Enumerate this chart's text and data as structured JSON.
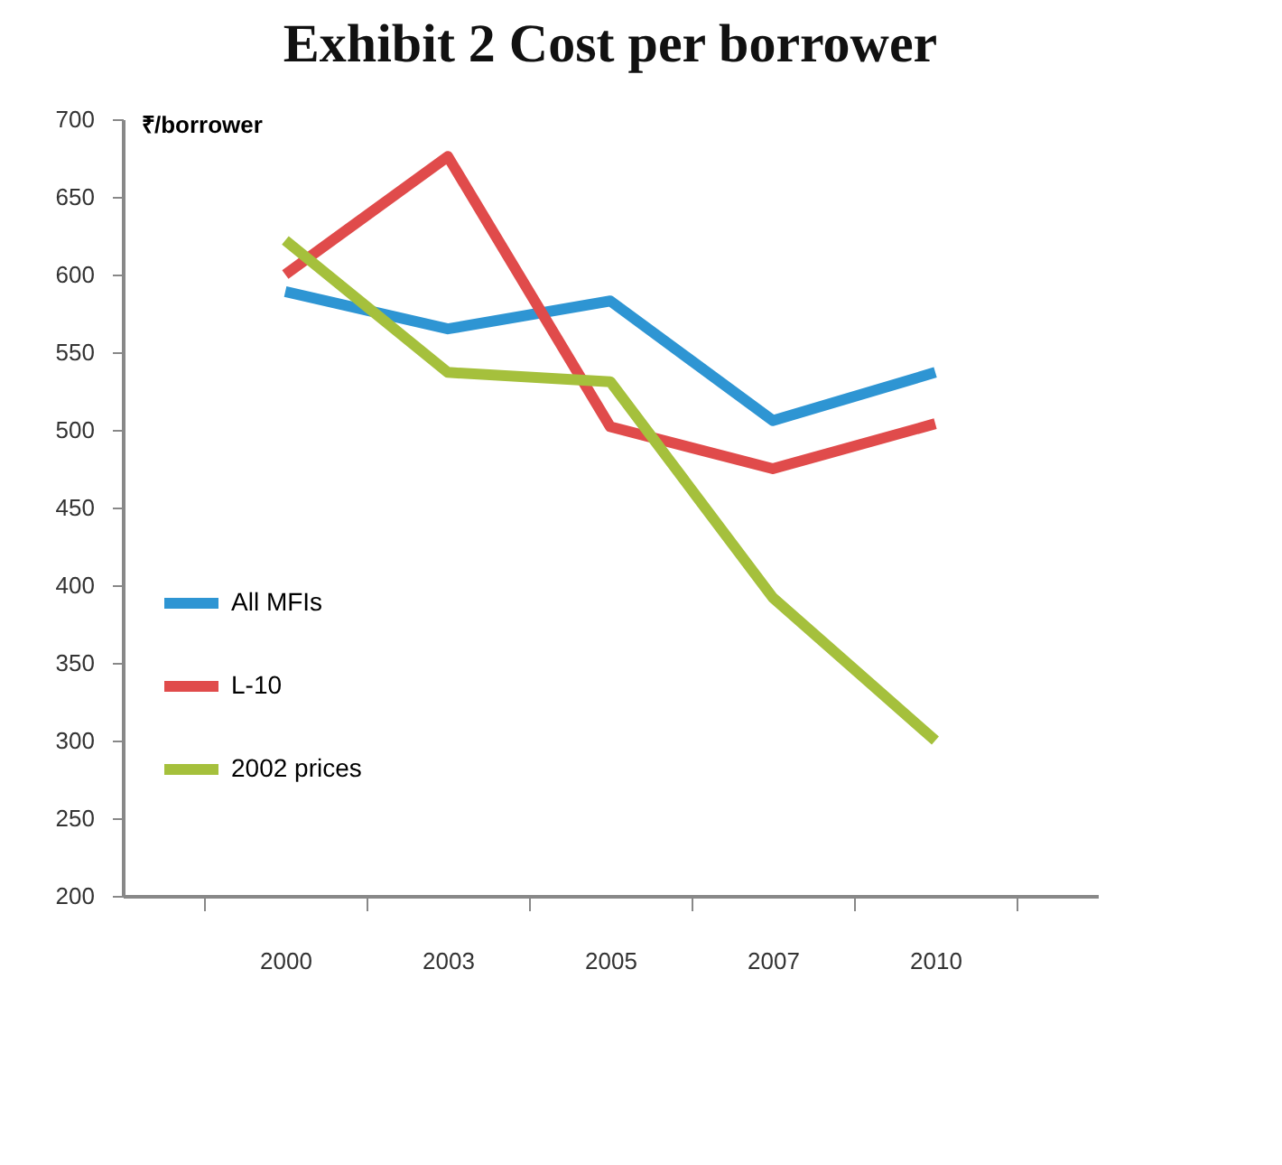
{
  "chart_data": {
    "type": "line",
    "title": "Exhibit 2 Cost per borrower",
    "ylabel": "₹/borrower",
    "categories": [
      "2000",
      "2003",
      "2005",
      "2007",
      "2010"
    ],
    "series": [
      {
        "name": "All MFIs",
        "color": "#2e95d3",
        "values": [
          589,
          565,
          583,
          506,
          537
        ]
      },
      {
        "name": "L-10",
        "color": "#e04b4b",
        "values": [
          600,
          676,
          502,
          475,
          504
        ]
      },
      {
        "name": "2002 prices",
        "color": "#a5c03c",
        "values": [
          622,
          537,
          531,
          392,
          300
        ]
      }
    ],
    "ylim": [
      200,
      700
    ],
    "yticks": [
      200,
      250,
      300,
      350,
      400,
      450,
      500,
      550,
      600,
      650,
      700
    ],
    "grid": false,
    "legend": "left",
    "marker": "none",
    "line_style": "solid"
  }
}
